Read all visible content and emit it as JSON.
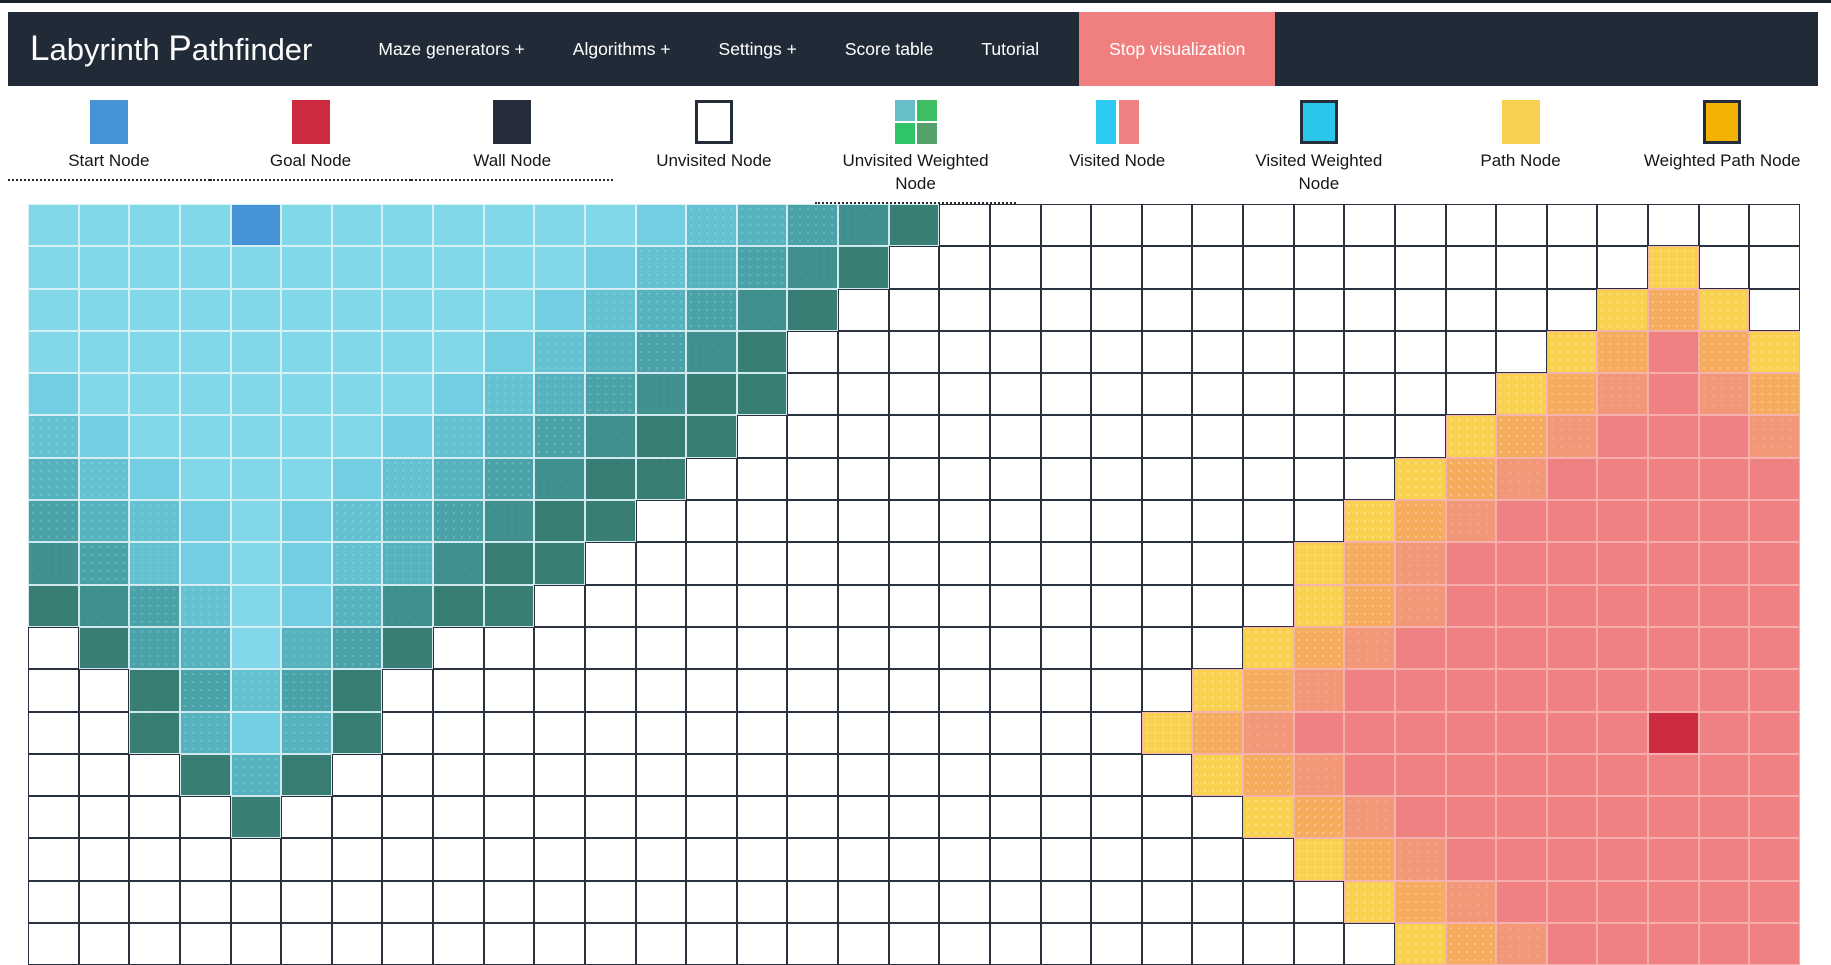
{
  "nav": {
    "brand_l1": "L",
    "brand_rest1": "abyrinth ",
    "brand_l2": "P",
    "brand_rest2": "athfinder",
    "items": [
      {
        "label": "Maze generators +"
      },
      {
        "label": "Algorithms +"
      },
      {
        "label": "Settings +"
      },
      {
        "label": "Score table"
      },
      {
        "label": "Tutorial"
      }
    ],
    "stop_label": "Stop visualization",
    "bar_color": "#212a37",
    "stop_color": "#f08080"
  },
  "legend": {
    "items": [
      {
        "id": "start-node",
        "label": "Start Node",
        "icon": "start",
        "dotted": true
      },
      {
        "id": "goal-node",
        "label": "Goal Node",
        "icon": "goal",
        "dotted": true
      },
      {
        "id": "wall-node",
        "label": "Wall Node",
        "icon": "wall",
        "dotted": true
      },
      {
        "id": "unvisited-node",
        "label": "Unvisited Node",
        "icon": "unvisited",
        "dotted": false
      },
      {
        "id": "unvisited-weighted-node",
        "label": "Unvisited Weighted Node",
        "icon": "unvisited-weighted",
        "dotted": true
      },
      {
        "id": "visited-node",
        "label": "Visited Node",
        "icon": "visited",
        "dotted": false
      },
      {
        "id": "visited-weighted-node",
        "label": "Visited Weighted Node",
        "icon": "visited-weighted",
        "dotted": false
      },
      {
        "id": "path-node",
        "label": "Path Node",
        "icon": "path",
        "dotted": false
      },
      {
        "id": "weighted-path-node",
        "label": "Weighted Path Node",
        "icon": "weighted-path",
        "dotted": false
      }
    ],
    "icon_colors": {
      "start": "#4793d8",
      "goal": "#cc2b40",
      "wall": "#252c3a",
      "unvisited": "#ffffff",
      "unvisited_weighted": [
        "#69bfc9",
        "#3dbe63",
        "#2fc467",
        "#55a06b"
      ],
      "visited": [
        "#2cc9f0",
        "#f08183"
      ],
      "visited_weighted": "#2bc7ea",
      "path": "#f8d150",
      "weighted_path": "#f2b306"
    }
  },
  "grid": {
    "cols": 35,
    "rows": 18,
    "start_cell": {
      "row": 0,
      "col": 4
    },
    "goal_cell": {
      "row": 12,
      "col": 32
    },
    "palette": {
      "unvisited": "#ffffff",
      "visited_base": "#82d7e9",
      "visited_frontier": "#397e75",
      "visited_red_base": "#f08183",
      "frontier_yellow": "#f8d150",
      "frontier_orange": "#f5ac5f",
      "start": "#4793d8",
      "goal": "#cc2b40"
    },
    "codes": {
      ".": "unvisited white",
      "a": "cyan faded",
      "b": "cyan",
      "c": "cyan mid",
      "d": "teal light",
      "e": "teal",
      "f": "teal dark",
      "g": "teal frontier",
      "x": "yellow frontier",
      "y": "orange",
      "z": "orange-salmon",
      "p": "salmon",
      "S": "start",
      "G": "goal"
    },
    "map": [
      "aaaaSaaaaaaabcdefg.................",
      "aaaaaaaaaaabcdefg...............x..",
      "aaaaaaaaaabcdefg...............xyx.",
      "aaaaaaaaabcdefg...............xypyx",
      "baaaaaaabcdefgg..............xyzpzy",
      "cbaaaaabcdefgg..............xyzpppz",
      "dcbaaabcdefgg..............xyzppppp",
      "edcbabcdefgg..............xyzpppppp",
      "fecbabcdfgg..............xyzppppppp",
      "gfecabdfgg...............xyzppppppp",
      ".gedadeg................xyzpppppppp",
      "..geceg................xyzppppppppp",
      "..gdbdg...............xyzpppppppGpp",
      "...gdg.................xyzppppppppp",
      "....g...................xyzpppppppp",
      ".........................xyzppppppp",
      "..........................xyzpppppp",
      "...........................xyzppppp"
    ]
  }
}
